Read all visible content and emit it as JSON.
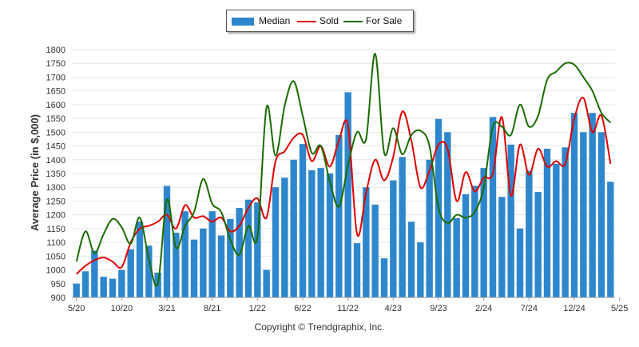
{
  "chart_data": {
    "type": "bar",
    "ylabel": "Average Price (in $,000)",
    "ylim": [
      900,
      1800
    ],
    "yticks": [
      900,
      950,
      1000,
      1050,
      1100,
      1150,
      1200,
      1250,
      1300,
      1350,
      1400,
      1450,
      1500,
      1550,
      1600,
      1650,
      1700,
      1750,
      1800
    ],
    "grid": true,
    "legend_placement": "top-center",
    "x_tick_labels": [
      {
        "index": 0,
        "label": "5/20"
      },
      {
        "index": 5,
        "label": "10/20"
      },
      {
        "index": 10,
        "label": "3/21"
      },
      {
        "index": 15,
        "label": "8/21"
      },
      {
        "index": 20,
        "label": "1/22"
      },
      {
        "index": 25,
        "label": "6/22"
      },
      {
        "index": 30,
        "label": "11/22"
      },
      {
        "index": 35,
        "label": "4/23"
      },
      {
        "index": 40,
        "label": "9/23"
      },
      {
        "index": 45,
        "label": "2/24"
      },
      {
        "index": 50,
        "label": "7/24"
      },
      {
        "index": 55,
        "label": "12/24"
      },
      {
        "index": 60,
        "label": "5/25"
      }
    ],
    "series": [
      {
        "name": "Median",
        "kind": "bar",
        "color": "#2e87cc",
        "values": [
          950,
          995,
          1070,
          975,
          968,
          1000,
          1075,
          1175,
          1088,
          990,
          1305,
          1135,
          1213,
          1110,
          1150,
          1213,
          1125,
          1185,
          1225,
          1255,
          1245,
          1000,
          1300,
          1335,
          1400,
          1457,
          1362,
          1370,
          1350,
          1490,
          1645,
          1097,
          1300,
          1237,
          1042,
          1325,
          1410,
          1175,
          1100,
          1400,
          1548,
          1500,
          1188,
          1275,
          1305,
          1370,
          1555,
          1265,
          1455,
          1150,
          1360,
          1283,
          1440,
          1385,
          1445,
          1570,
          1500,
          1570,
          1500,
          1320
        ]
      },
      {
        "name": "Sold",
        "kind": "line",
        "color": "#e00000",
        "values": [
          985,
          1015,
          1035,
          1045,
          1030,
          1010,
          1100,
          1150,
          1160,
          1175,
          1200,
          1150,
          1235,
          1190,
          1195,
          1175,
          1190,
          1140,
          1160,
          1225,
          1260,
          1190,
          1395,
          1430,
          1480,
          1490,
          1395,
          1450,
          1375,
          1470,
          1525,
          1130,
          1280,
          1400,
          1325,
          1410,
          1575,
          1470,
          1300,
          1360,
          1455,
          1440,
          1250,
          1355,
          1285,
          1335,
          1350,
          1555,
          1270,
          1455,
          1345,
          1440,
          1375,
          1395,
          1385,
          1550,
          1625,
          1500,
          1560,
          1385
        ]
      },
      {
        "name": "For Sale",
        "kind": "line",
        "color": "#1a6b00",
        "values": [
          1030,
          1140,
          1060,
          1130,
          1185,
          1155,
          1095,
          1190,
          1040,
          950,
          1255,
          1080,
          1160,
          1210,
          1330,
          1240,
          1210,
          1110,
          1055,
          1160,
          1120,
          1590,
          1415,
          1595,
          1685,
          1560,
          1425,
          1450,
          1320,
          1230,
          1380,
          1500,
          1475,
          1785,
          1425,
          1515,
          1420,
          1490,
          1505,
          1450,
          1225,
          1170,
          1200,
          1190,
          1210,
          1300,
          1520,
          1520,
          1490,
          1600,
          1520,
          1560,
          1690,
          1720,
          1750,
          1745,
          1700,
          1650,
          1570,
          1535
        ]
      }
    ]
  },
  "copyright": "Copyright © Trendgraphix, Inc."
}
